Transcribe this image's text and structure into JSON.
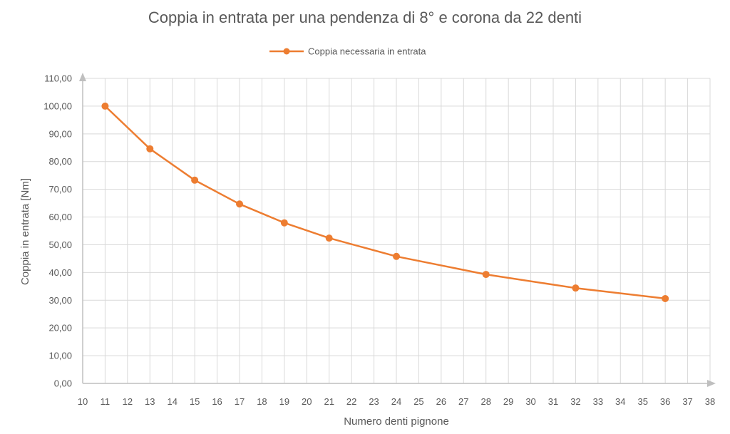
{
  "chart_data": {
    "type": "line",
    "title": "Coppia in entrata per una pendenza di 8° e corona da 22 denti",
    "xlabel": "Numero denti pignone",
    "ylabel": "Coppia in entrata [Nm]",
    "xlim": [
      10,
      38
    ],
    "ylim": [
      0,
      110
    ],
    "x_ticks": [
      "10",
      "11",
      "12",
      "13",
      "14",
      "15",
      "16",
      "17",
      "18",
      "19",
      "20",
      "21",
      "22",
      "23",
      "24",
      "25",
      "26",
      "27",
      "28",
      "29",
      "30",
      "31",
      "32",
      "33",
      "34",
      "35",
      "36",
      "37",
      "38"
    ],
    "y_ticks": [
      "0,00",
      "10,00",
      "20,00",
      "30,00",
      "40,00",
      "50,00",
      "60,00",
      "70,00",
      "80,00",
      "90,00",
      "100,00",
      "110,00"
    ],
    "grid": true,
    "legend_position": "top",
    "series": [
      {
        "name": "Coppia necessaria in entrata",
        "color": "#ED7D31",
        "x": [
          11,
          13,
          15,
          17,
          19,
          21,
          24,
          28,
          32,
          36
        ],
        "y": [
          100.0,
          84.6,
          73.3,
          64.7,
          57.9,
          52.4,
          45.8,
          39.3,
          34.4,
          30.6
        ]
      }
    ]
  }
}
